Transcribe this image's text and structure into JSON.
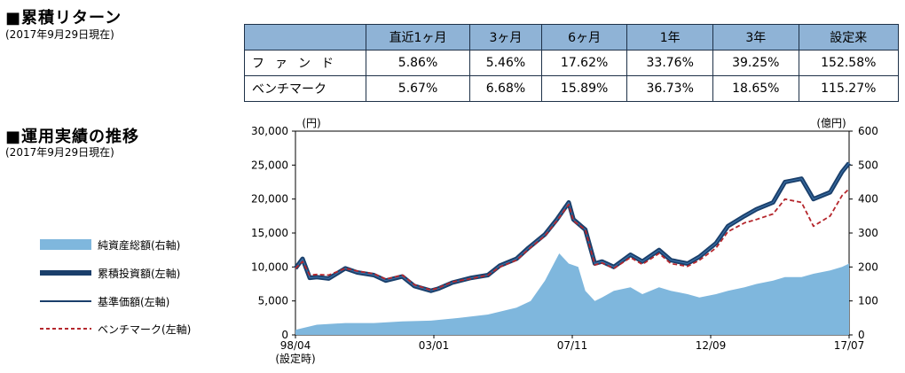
{
  "returns_section": {
    "title": "■累積リターン",
    "date": "(2017年9月29日現在)",
    "headers": [
      "直近1ヶ月",
      "3ヶ月",
      "6ヶ月",
      "1年",
      "3年",
      "設定来"
    ],
    "rows": [
      {
        "label": "ファンド",
        "values": [
          "5.86%",
          "5.46%",
          "17.62%",
          "33.76%",
          "39.25%",
          "152.58%"
        ]
      },
      {
        "label": "ベンチマーク",
        "values": [
          "5.67%",
          "6.68%",
          "15.89%",
          "36.73%",
          "18.65%",
          "115.27%"
        ]
      }
    ]
  },
  "performance_section": {
    "title": "■運用実績の推移",
    "date": "(2017年9月29日現在)"
  },
  "colors": {
    "table_header": "#8fb3d6",
    "net_assets": "#7fb7dd",
    "cumulative": "#1a3f6b",
    "nav": "#1a3f6b",
    "benchmark": "#b5272d"
  },
  "chart_data": {
    "type": "line",
    "y_left_unit": "(円)",
    "y_right_unit": "(億円)",
    "y_left_ticks": [
      "0",
      "5,000",
      "10,000",
      "15,000",
      "20,000",
      "25,000",
      "30,000"
    ],
    "y_right_ticks": [
      "0",
      "100",
      "200",
      "300",
      "400",
      "500",
      "600"
    ],
    "ylim_left": [
      0,
      30000
    ],
    "ylim_right": [
      0,
      600
    ],
    "x_ticks": [
      "98/04",
      "03/01",
      "07/11",
      "12/09",
      "17/07"
    ],
    "x_first_sub": "(設定時)",
    "x_range": [
      "1998-04",
      "2017-09"
    ],
    "legend_placement": "left",
    "series": [
      {
        "name": "純資産総額(右軸)",
        "type": "area",
        "axis": "right",
        "x": [
          "1998-04",
          "1999-01",
          "2000-01",
          "2001-01",
          "2002-01",
          "2003-01",
          "2004-01",
          "2005-01",
          "2006-01",
          "2006-07",
          "2007-01",
          "2007-07",
          "2007-11",
          "2008-03",
          "2008-06",
          "2008-10",
          "2009-01",
          "2009-06",
          "2010-01",
          "2010-06",
          "2011-01",
          "2011-06",
          "2012-01",
          "2012-06",
          "2013-01",
          "2013-06",
          "2014-01",
          "2014-06",
          "2015-01",
          "2015-06",
          "2016-01",
          "2016-06",
          "2017-01",
          "2017-06",
          "2017-09"
        ],
        "values": [
          15,
          30,
          35,
          35,
          40,
          42,
          50,
          60,
          80,
          100,
          160,
          240,
          210,
          200,
          130,
          100,
          110,
          130,
          140,
          120,
          140,
          130,
          120,
          110,
          120,
          130,
          140,
          150,
          160,
          170,
          170,
          180,
          190,
          200,
          210
        ]
      },
      {
        "name": "累積投資額(左軸)",
        "type": "line-thick",
        "axis": "left",
        "x": [
          "1998-04",
          "1998-07",
          "1998-10",
          "1999-01",
          "1999-06",
          "2000-01",
          "2000-06",
          "2001-01",
          "2001-06",
          "2002-01",
          "2002-06",
          "2003-01",
          "2003-04",
          "2003-10",
          "2004-06",
          "2005-01",
          "2005-06",
          "2006-01",
          "2006-06",
          "2007-01",
          "2007-06",
          "2007-11",
          "2008-01",
          "2008-06",
          "2008-10",
          "2009-01",
          "2009-06",
          "2010-01",
          "2010-06",
          "2011-01",
          "2011-06",
          "2012-01",
          "2012-06",
          "2013-01",
          "2013-06",
          "2014-01",
          "2014-06",
          "2015-01",
          "2015-06",
          "2016-01",
          "2016-06",
          "2017-01",
          "2017-06",
          "2017-09"
        ],
        "values": [
          9800,
          11200,
          8400,
          8500,
          8300,
          9800,
          9200,
          8800,
          8000,
          8600,
          7200,
          6500,
          6800,
          7700,
          8400,
          8800,
          10200,
          11200,
          12800,
          14800,
          17000,
          19500,
          17000,
          15500,
          10500,
          10800,
          10000,
          11800,
          10800,
          12500,
          11000,
          10500,
          11500,
          13500,
          16000,
          17500,
          18500,
          19500,
          22500,
          23000,
          20000,
          21000,
          24000,
          25300
        ]
      },
      {
        "name": "基準価額(左軸)",
        "type": "line",
        "axis": "left",
        "x": [
          "1998-04",
          "1998-07",
          "1998-10",
          "1999-01",
          "1999-06",
          "2000-01",
          "2000-06",
          "2001-01",
          "2001-06",
          "2002-01",
          "2002-06",
          "2003-01",
          "2003-04",
          "2003-10",
          "2004-06",
          "2005-01",
          "2005-06",
          "2006-01",
          "2006-06",
          "2007-01",
          "2007-06",
          "2007-11",
          "2008-01",
          "2008-06",
          "2008-10",
          "2009-01",
          "2009-06",
          "2010-01",
          "2010-06",
          "2011-01",
          "2011-06",
          "2012-01",
          "2012-06",
          "2013-01",
          "2013-06",
          "2014-01",
          "2014-06",
          "2015-01",
          "2015-06",
          "2016-01",
          "2016-06",
          "2017-01",
          "2017-06",
          "2017-09"
        ],
        "values": [
          9800,
          11200,
          8400,
          8500,
          8300,
          9800,
          9200,
          8800,
          8000,
          8600,
          7200,
          6500,
          6800,
          7700,
          8400,
          8800,
          10200,
          11200,
          12800,
          14800,
          17000,
          19500,
          17000,
          15500,
          10500,
          10800,
          10000,
          11800,
          10800,
          12500,
          11000,
          10500,
          11500,
          13500,
          16000,
          17500,
          18500,
          19500,
          22500,
          23000,
          20000,
          21000,
          24000,
          25300
        ]
      },
      {
        "name": "ベンチマーク(左軸)",
        "type": "line-dashed",
        "axis": "left",
        "x": [
          "1998-04",
          "1998-07",
          "1998-10",
          "1999-01",
          "1999-06",
          "2000-01",
          "2000-06",
          "2001-01",
          "2001-06",
          "2002-01",
          "2002-06",
          "2003-01",
          "2003-04",
          "2003-10",
          "2004-06",
          "2005-01",
          "2005-06",
          "2006-01",
          "2006-06",
          "2007-01",
          "2007-06",
          "2007-11",
          "2008-01",
          "2008-06",
          "2008-10",
          "2009-01",
          "2009-06",
          "2010-01",
          "2010-06",
          "2011-01",
          "2011-06",
          "2012-01",
          "2012-06",
          "2013-01",
          "2013-06",
          "2014-01",
          "2014-06",
          "2015-01",
          "2015-06",
          "2016-01",
          "2016-06",
          "2017-01",
          "2017-06",
          "2017-09"
        ],
        "values": [
          9800,
          10800,
          8800,
          8900,
          8800,
          9800,
          9400,
          9000,
          8200,
          8800,
          7400,
          6600,
          6900,
          7800,
          8300,
          8800,
          10000,
          11000,
          12600,
          14600,
          16800,
          19200,
          16800,
          15500,
          10300,
          10600,
          9800,
          11400,
          10400,
          12000,
          10500,
          10100,
          11000,
          12800,
          15200,
          16500,
          17000,
          17800,
          20000,
          19500,
          16000,
          17500,
          20500,
          21500
        ]
      }
    ]
  }
}
